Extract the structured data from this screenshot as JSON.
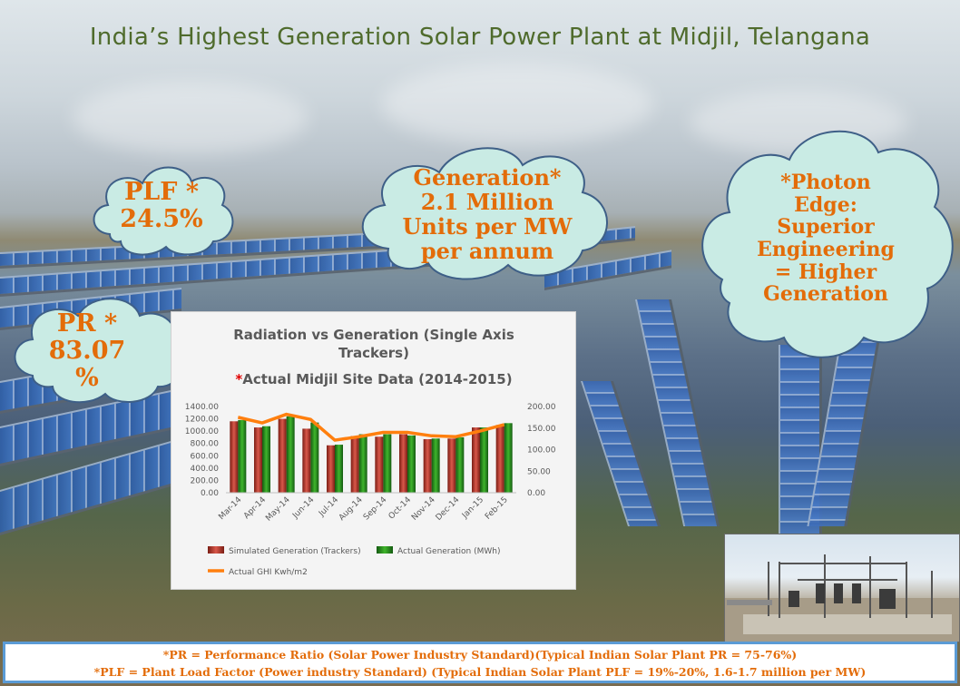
{
  "title": "India’s Highest Generation Solar Power Plant at Midjil, Telangana",
  "callouts": {
    "plf": [
      "PLF *",
      "24.5%"
    ],
    "generation": [
      "Generation*",
      "2.1 Million",
      "Units per MW",
      "per annum"
    ],
    "photon": [
      "*Photon",
      "Edge:",
      "Superior",
      "Engineering",
      "= Higher",
      "Generation"
    ],
    "pr": [
      "PR *",
      "83.07",
      "%"
    ]
  },
  "colors": {
    "title": "#4f6b2c",
    "callout_text": "#e36c09",
    "cloud_fill": "#c9ebe4",
    "cloud_stroke": "#3e5f87",
    "footnote_border": "#5b9bd5"
  },
  "chart_data": {
    "type": "bar",
    "title_lines": [
      "Radiation vs Generation (Single Axis",
      "Trackers)"
    ],
    "subtitle_star": "*",
    "subtitle": "Actual Midjil Site Data (2014-2015)",
    "categories": [
      "Mar-14",
      "Apr-14",
      "May-14",
      "Jun-14",
      "Jul-14",
      "Aug-14",
      "Sep-14",
      "Oct-14",
      "Nov-14",
      "Dec-14",
      "Jan-15",
      "Feb-15"
    ],
    "series": [
      {
        "name": "Simulated Generation (Trackers)",
        "kind": "bar",
        "axis": "left",
        "color": "#c0392b",
        "values": [
          1160,
          1060,
          1200,
          1040,
          770,
          920,
          910,
          950,
          870,
          880,
          1060,
          1100
        ]
      },
      {
        "name": "Actual Generation (MWh)",
        "kind": "bar",
        "axis": "left",
        "color": "#2e8b1f",
        "values": [
          1180,
          1080,
          1240,
          1140,
          780,
          950,
          950,
          930,
          880,
          900,
          1060,
          1130
        ]
      },
      {
        "name": "Actual GHI Kwh/m2",
        "kind": "line",
        "axis": "right",
        "color": "#ff7f0e",
        "values": [
          175,
          162,
          182,
          170,
          122,
          130,
          140,
          140,
          132,
          130,
          143,
          158
        ]
      }
    ],
    "y_left": {
      "min": 0,
      "max": 1400,
      "step": 200,
      "ticks": [
        "0.00",
        "200.00",
        "400.00",
        "600.00",
        "800.00",
        "1000.00",
        "1200.00",
        "1400.00"
      ]
    },
    "y_right": {
      "min": 0,
      "max": 200,
      "step": 50,
      "ticks": [
        "0.00",
        "50.00",
        "100.00",
        "150.00",
        "200.00"
      ]
    },
    "legend_position": "bottom",
    "grid": false
  },
  "footnote": {
    "line1": "*PR = Performance Ratio (Solar Power Industry Standard)(Typical Indian Solar Plant PR = 75-76%)",
    "line2": "*PLF = Plant Load Factor (Power industry Standard) (Typical Indian Solar Plant PLF = 19%-20%, 1.6-1.7 million per MW)"
  }
}
